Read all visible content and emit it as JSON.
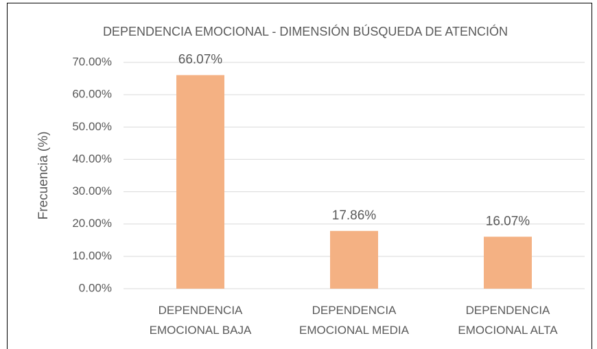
{
  "chart_data": {
    "type": "bar",
    "title": "DEPENDENCIA EMOCIONAL - DIMENSIÓN BÚSQUEDA DE ATENCIÓN",
    "y_label": "Frecuencia (%)",
    "categories": [
      "DEPENDENCIA EMOCIONAL BAJA",
      "DEPENDENCIA EMOCIONAL MEDIA",
      "DEPENDENCIA EMOCIONAL ALTA"
    ],
    "values": [
      66.07,
      17.86,
      16.07
    ],
    "value_labels": [
      "66.07%",
      "17.86%",
      "16.07%"
    ],
    "color": "#f4b183",
    "ylim": [
      0,
      70
    ],
    "yticks": [
      {
        "value": 0,
        "label": "0.00%"
      },
      {
        "value": 10,
        "label": "10.00%"
      },
      {
        "value": 20,
        "label": "20.00%"
      },
      {
        "value": 30,
        "label": "30.00%"
      },
      {
        "value": 40,
        "label": "40.00%"
      },
      {
        "value": 50,
        "label": "50.00%"
      },
      {
        "value": 60,
        "label": "60.00%"
      },
      {
        "value": 70,
        "label": "70.00%"
      }
    ],
    "grid": true
  }
}
